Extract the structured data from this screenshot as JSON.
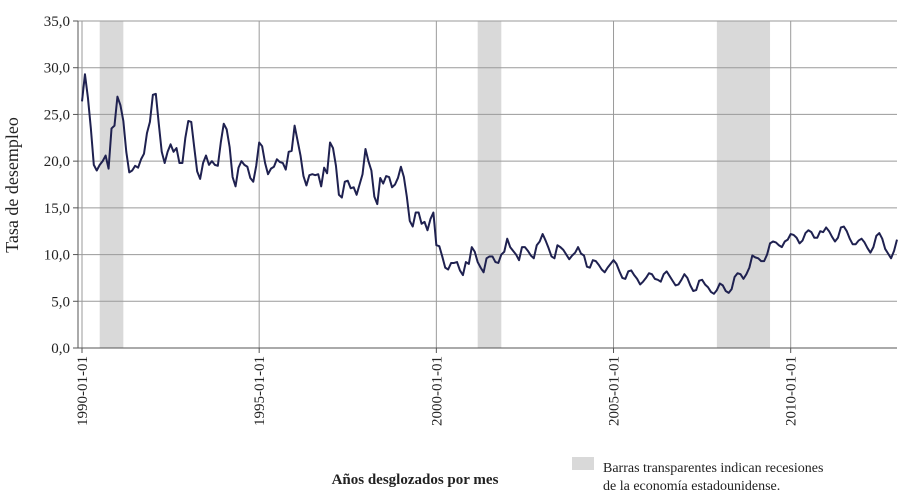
{
  "chart_data": {
    "type": "line",
    "y_label": "Tasa de desempleo",
    "x_label": "Años desglozados por mes",
    "legend_note": [
      "Barras transparentes indican recesiones",
      "de la economía estadounidense."
    ],
    "recession_color": "#d9d9d9",
    "recessions": [
      {
        "start": "1990-07-01",
        "end": "1991-03-01"
      },
      {
        "start": "2001-03-01",
        "end": "2001-11-01"
      },
      {
        "start": "2007-12-01",
        "end": "2009-06-01"
      }
    ],
    "grid": true,
    "xlim": [
      "1990-01-01",
      "2013-01-01"
    ],
    "xticks": [
      "1990-01-01",
      "1995-01-01",
      "2000-01-01",
      "2005-01-01",
      "2010-01-01"
    ],
    "ylim": [
      0,
      35
    ],
    "yticks": [
      {
        "value": 0,
        "label": "0,0"
      },
      {
        "value": 5,
        "label": "5,0"
      },
      {
        "value": 10,
        "label": "10,0"
      },
      {
        "value": 15,
        "label": "15,0"
      },
      {
        "value": 20,
        "label": "20,0"
      },
      {
        "value": 25,
        "label": "25,0"
      },
      {
        "value": 30,
        "label": "30,0"
      },
      {
        "value": 35,
        "label": "35,0"
      }
    ],
    "x": [
      "1990-01-01",
      "1990-02-01",
      "1990-03-01",
      "1990-04-01",
      "1990-05-01",
      "1990-06-01",
      "1990-07-01",
      "1990-08-01",
      "1990-09-01",
      "1990-10-01",
      "1990-11-01",
      "1990-12-01",
      "1991-01-01",
      "1991-02-01",
      "1991-03-01",
      "1991-04-01",
      "1991-05-01",
      "1991-06-01",
      "1991-07-01",
      "1991-08-01",
      "1991-09-01",
      "1991-10-01",
      "1991-11-01",
      "1991-12-01",
      "1992-01-01",
      "1992-02-01",
      "1992-03-01",
      "1992-04-01",
      "1992-05-01",
      "1992-06-01",
      "1992-07-01",
      "1992-08-01",
      "1992-09-01",
      "1992-10-01",
      "1992-11-01",
      "1992-12-01",
      "1993-01-01",
      "1993-02-01",
      "1993-03-01",
      "1993-04-01",
      "1993-05-01",
      "1993-06-01",
      "1993-07-01",
      "1993-08-01",
      "1993-09-01",
      "1993-10-01",
      "1993-11-01",
      "1993-12-01",
      "1994-01-01",
      "1994-02-01",
      "1994-03-01",
      "1994-04-01",
      "1994-05-01",
      "1994-06-01",
      "1994-07-01",
      "1994-08-01",
      "1994-09-01",
      "1994-10-01",
      "1994-11-01",
      "1994-12-01",
      "1995-01-01",
      "1995-02-01",
      "1995-03-01",
      "1995-04-01",
      "1995-05-01",
      "1995-06-01",
      "1995-07-01",
      "1995-08-01",
      "1995-09-01",
      "1995-10-01",
      "1995-11-01",
      "1995-12-01",
      "1996-01-01",
      "1996-02-01",
      "1996-03-01",
      "1996-04-01",
      "1996-05-01",
      "1996-06-01",
      "1996-07-01",
      "1996-08-01",
      "1996-09-01",
      "1996-10-01",
      "1996-11-01",
      "1996-12-01",
      "1997-01-01",
      "1997-02-01",
      "1997-03-01",
      "1997-04-01",
      "1997-05-01",
      "1997-06-01",
      "1997-07-01",
      "1997-08-01",
      "1997-09-01",
      "1997-10-01",
      "1997-11-01",
      "1997-12-01",
      "1998-01-01",
      "1998-02-01",
      "1998-03-01",
      "1998-04-01",
      "1998-05-01",
      "1998-06-01",
      "1998-07-01",
      "1998-08-01",
      "1998-09-01",
      "1998-10-01",
      "1998-11-01",
      "1998-12-01",
      "1999-01-01",
      "1999-02-01",
      "1999-03-01",
      "1999-04-01",
      "1999-05-01",
      "1999-06-01",
      "1999-07-01",
      "1999-08-01",
      "1999-09-01",
      "1999-10-01",
      "1999-11-01",
      "1999-12-01",
      "2000-01-01",
      "2000-02-01",
      "2000-03-01",
      "2000-04-01",
      "2000-05-01",
      "2000-06-01",
      "2000-07-01",
      "2000-08-01",
      "2000-09-01",
      "2000-10-01",
      "2000-11-01",
      "2000-12-01",
      "2001-01-01",
      "2001-02-01",
      "2001-03-01",
      "2001-04-01",
      "2001-05-01",
      "2001-06-01",
      "2001-07-01",
      "2001-08-01",
      "2001-09-01",
      "2001-10-01",
      "2001-11-01",
      "2001-12-01",
      "2002-01-01",
      "2002-02-01",
      "2002-03-01",
      "2002-04-01",
      "2002-05-01",
      "2002-06-01",
      "2002-07-01",
      "2002-08-01",
      "2002-09-01",
      "2002-10-01",
      "2002-11-01",
      "2002-12-01",
      "2003-01-01",
      "2003-02-01",
      "2003-03-01",
      "2003-04-01",
      "2003-05-01",
      "2003-06-01",
      "2003-07-01",
      "2003-08-01",
      "2003-09-01",
      "2003-10-01",
      "2003-11-01",
      "2003-12-01",
      "2004-01-01",
      "2004-02-01",
      "2004-03-01",
      "2004-04-01",
      "2004-05-01",
      "2004-06-01",
      "2004-07-01",
      "2004-08-01",
      "2004-09-01",
      "2004-10-01",
      "2004-11-01",
      "2004-12-01",
      "2005-01-01",
      "2005-02-01",
      "2005-03-01",
      "2005-04-01",
      "2005-05-01",
      "2005-06-01",
      "2005-07-01",
      "2005-08-01",
      "2005-09-01",
      "2005-10-01",
      "2005-11-01",
      "2005-12-01",
      "2006-01-01",
      "2006-02-01",
      "2006-03-01",
      "2006-04-01",
      "2006-05-01",
      "2006-06-01",
      "2006-07-01",
      "2006-08-01",
      "2006-09-01",
      "2006-10-01",
      "2006-11-01",
      "2006-12-01",
      "2007-01-01",
      "2007-02-01",
      "2007-03-01",
      "2007-04-01",
      "2007-05-01",
      "2007-06-01",
      "2007-07-01",
      "2007-08-01",
      "2007-09-01",
      "2007-10-01",
      "2007-11-01",
      "2007-12-01",
      "2008-01-01",
      "2008-02-01",
      "2008-03-01",
      "2008-04-01",
      "2008-05-01",
      "2008-06-01",
      "2008-07-01",
      "2008-08-01",
      "2008-09-01",
      "2008-10-01",
      "2008-11-01",
      "2008-12-01",
      "2009-01-01",
      "2009-02-01",
      "2009-03-01",
      "2009-04-01",
      "2009-05-01",
      "2009-06-01",
      "2009-07-01",
      "2009-08-01",
      "2009-09-01",
      "2009-10-01",
      "2009-11-01",
      "2009-12-01",
      "2010-01-01",
      "2010-02-01",
      "2010-03-01",
      "2010-04-01",
      "2010-05-01",
      "2010-06-01",
      "2010-07-01",
      "2010-08-01",
      "2010-09-01",
      "2010-10-01",
      "2010-11-01",
      "2010-12-01",
      "2011-01-01",
      "2011-02-01",
      "2011-03-01",
      "2011-04-01",
      "2011-05-01",
      "2011-06-01",
      "2011-07-01",
      "2011-08-01",
      "2011-09-01",
      "2011-10-01",
      "2011-11-01",
      "2011-12-01",
      "2012-01-01",
      "2012-02-01",
      "2012-03-01",
      "2012-04-01",
      "2012-05-01",
      "2012-06-01",
      "2012-07-01",
      "2012-08-01",
      "2012-09-01",
      "2012-10-01",
      "2012-11-01",
      "2012-12-01",
      "2013-01-01"
    ],
    "series": [
      {
        "color": "#1f2150",
        "values": [
          26.4,
          29.3,
          26.8,
          23.5,
          19.6,
          19.0,
          19.6,
          20.0,
          20.6,
          19.2,
          23.5,
          23.8,
          26.9,
          26.0,
          24.3,
          21.0,
          18.8,
          19.0,
          19.5,
          19.3,
          20.2,
          20.8,
          23.0,
          24.2,
          27.1,
          27.2,
          24.0,
          21.0,
          19.8,
          21.0,
          21.8,
          21.0,
          21.4,
          19.8,
          19.8,
          22.5,
          24.3,
          24.2,
          21.5,
          18.9,
          18.1,
          19.8,
          20.6,
          19.6,
          20.0,
          19.6,
          19.5,
          22.0,
          24.0,
          23.4,
          21.5,
          18.3,
          17.3,
          19.3,
          20.0,
          19.6,
          19.4,
          18.2,
          17.8,
          19.5,
          22.0,
          21.6,
          19.8,
          18.6,
          19.2,
          19.4,
          20.2,
          19.9,
          19.8,
          19.1,
          21.0,
          21.1,
          23.8,
          22.2,
          20.6,
          18.4,
          17.4,
          18.5,
          18.6,
          18.5,
          18.6,
          17.3,
          19.3,
          18.7,
          22.0,
          21.4,
          19.5,
          16.4,
          16.1,
          17.8,
          17.9,
          17.1,
          17.2,
          16.4,
          17.5,
          18.6,
          21.3,
          20.0,
          19.0,
          16.2,
          15.4,
          18.2,
          17.6,
          18.4,
          18.3,
          17.2,
          17.5,
          18.2,
          19.4,
          18.3,
          16.2,
          13.6,
          13.0,
          14.5,
          14.5,
          13.3,
          13.5,
          12.6,
          13.8,
          14.5,
          11.0,
          10.9,
          9.8,
          8.6,
          8.4,
          9.1,
          9.1,
          9.2,
          8.3,
          7.8,
          9.2,
          9.0,
          10.8,
          10.3,
          9.2,
          8.6,
          8.1,
          9.6,
          9.8,
          9.8,
          9.2,
          9.1,
          10.0,
          10.3,
          11.7,
          10.8,
          10.4,
          10.0,
          9.4,
          10.8,
          10.8,
          10.4,
          9.9,
          9.6,
          11.0,
          11.4,
          12.2,
          11.5,
          10.7,
          9.8,
          9.6,
          11.0,
          10.8,
          10.5,
          10.0,
          9.5,
          9.9,
          10.2,
          10.8,
          10.1,
          9.9,
          8.7,
          8.6,
          9.4,
          9.3,
          8.9,
          8.4,
          8.1,
          8.6,
          9.0,
          9.4,
          9.0,
          8.2,
          7.5,
          7.4,
          8.2,
          8.3,
          7.8,
          7.4,
          6.8,
          7.1,
          7.5,
          8.0,
          7.9,
          7.4,
          7.3,
          7.1,
          7.9,
          8.2,
          7.7,
          7.2,
          6.7,
          6.8,
          7.3,
          7.9,
          7.5,
          6.7,
          6.1,
          6.2,
          7.2,
          7.3,
          6.8,
          6.5,
          6.0,
          5.8,
          6.2,
          6.9,
          6.7,
          6.1,
          5.9,
          6.3,
          7.6,
          8.0,
          7.9,
          7.4,
          7.9,
          8.6,
          9.9,
          9.7,
          9.6,
          9.3,
          9.3,
          10.0,
          11.2,
          11.4,
          11.3,
          11.0,
          10.8,
          11.4,
          11.6,
          12.2,
          12.1,
          11.8,
          11.2,
          11.5,
          12.3,
          12.6,
          12.4,
          11.8,
          11.8,
          12.5,
          12.4,
          12.9,
          12.5,
          11.9,
          11.4,
          11.8,
          12.9,
          13.0,
          12.5,
          11.7,
          11.1,
          11.1,
          11.5,
          11.7,
          11.3,
          10.7,
          10.2,
          10.8,
          12.0,
          12.3,
          11.7,
          10.6,
          10.1,
          9.6,
          10.4,
          11.6
        ]
      }
    ]
  }
}
